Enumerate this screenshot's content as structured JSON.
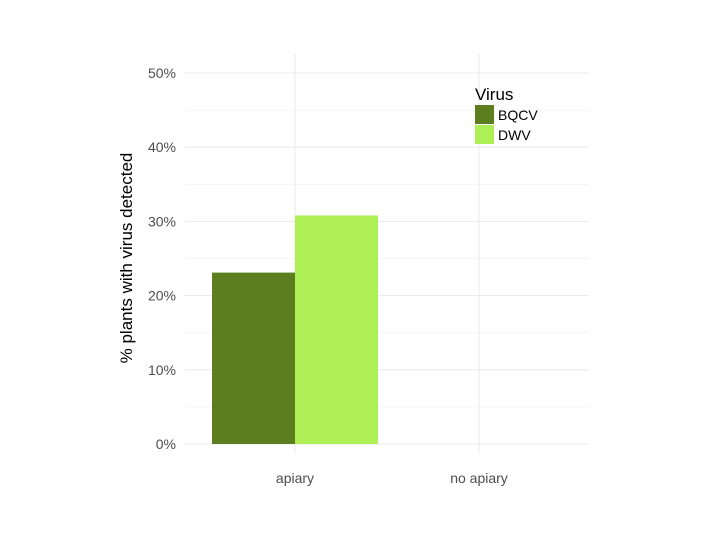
{
  "chart_data": {
    "type": "bar",
    "categories": [
      "apiary",
      "no apiary"
    ],
    "series": [
      {
        "name": "BQCV",
        "values": [
          23.1,
          0
        ],
        "color": "#5c7e1e"
      },
      {
        "name": "DWV",
        "values": [
          30.8,
          0
        ],
        "color": "#adef55"
      }
    ],
    "ylabel": "% plants with virus detected",
    "ylim": [
      0,
      50
    ],
    "yticks": [
      "0%",
      "10%",
      "20%",
      "30%",
      "40%",
      "50%"
    ],
    "ytick_values": [
      0,
      10,
      20,
      30,
      40,
      50
    ],
    "legend": {
      "title": "Virus",
      "placement": "top-right"
    },
    "grid": true
  }
}
